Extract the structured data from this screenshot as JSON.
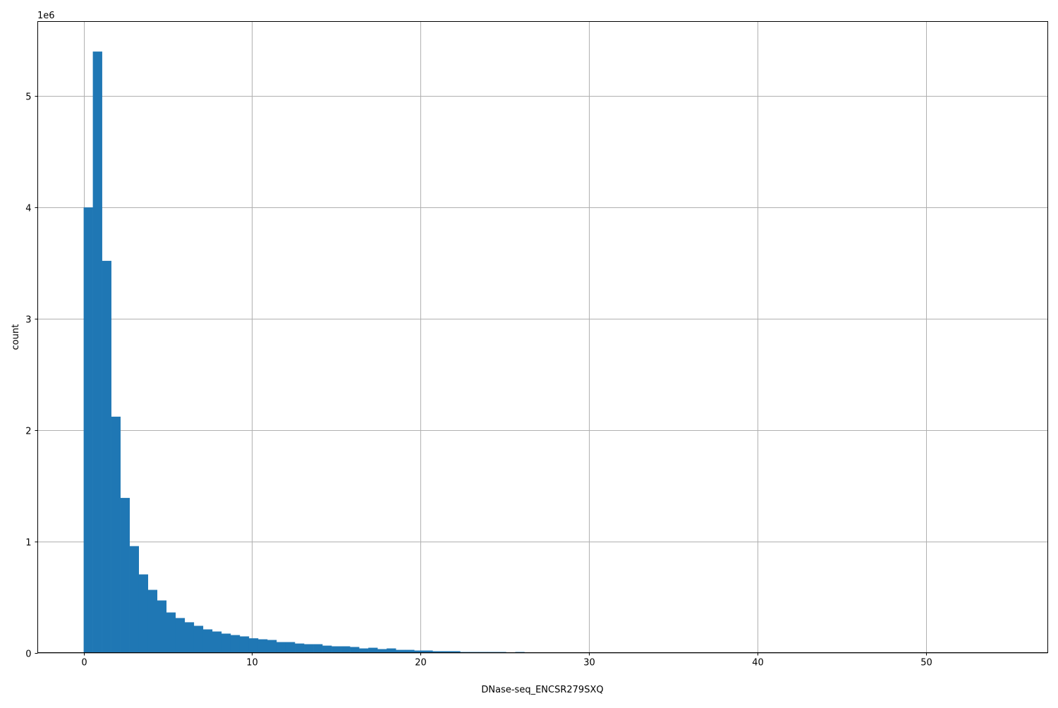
{
  "chart_data": {
    "type": "bar",
    "subtype": "histogram",
    "xlabel": "DNase-seq_ENCSR279SXQ",
    "ylabel": "count",
    "y_offset_label": "1e6",
    "y_scale_factor": 1000000,
    "xlim": [
      -2.725,
      57.225
    ],
    "ylim": [
      0,
      5.67
    ],
    "x_ticks": [
      "0",
      "10",
      "20",
      "30",
      "40",
      "50"
    ],
    "y_ticks": [
      "0",
      "1",
      "2",
      "3",
      "4",
      "5"
    ],
    "grid": true,
    "bar_color": "#1f77b4",
    "bin_start": 0,
    "bin_width": 0.545,
    "values_1e6": [
      4.0,
      5.4,
      3.52,
      2.12,
      1.39,
      0.957,
      0.703,
      0.564,
      0.469,
      0.361,
      0.311,
      0.273,
      0.241,
      0.209,
      0.19,
      0.171,
      0.158,
      0.146,
      0.129,
      0.12,
      0.114,
      0.095,
      0.095,
      0.082,
      0.076,
      0.076,
      0.063,
      0.057,
      0.057,
      0.051,
      0.038,
      0.044,
      0.032,
      0.038,
      0.025,
      0.025,
      0.019,
      0.019,
      0.013,
      0.013,
      0.013,
      0.006,
      0.006,
      0.006,
      0.006,
      0.006,
      0,
      0.006,
      0,
      0,
      0,
      0,
      0,
      0,
      0,
      0,
      0,
      0,
      0,
      0,
      0,
      0,
      0,
      0,
      0,
      0,
      0,
      0,
      0,
      0,
      0,
      0,
      0,
      0,
      0,
      0,
      0,
      0,
      0,
      0,
      0,
      0,
      0,
      0,
      0,
      0,
      0,
      0,
      0,
      0,
      0,
      0,
      0,
      0,
      0,
      0,
      0,
      0,
      0,
      0
    ]
  }
}
